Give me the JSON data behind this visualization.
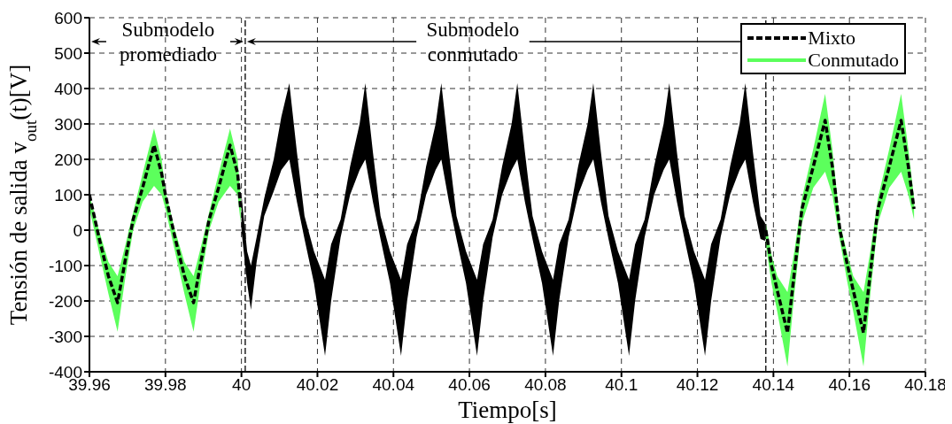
{
  "chart_data": {
    "type": "line",
    "xlabel": "Tiempo[s]",
    "ylabel": "Tensión de salida v$_{out}$(t)[V]",
    "xlim": [
      39.96,
      40.18
    ],
    "xticks": [
      39.96,
      39.98,
      40,
      40.02,
      40.04,
      40.06,
      40.08,
      40.1,
      40.12,
      40.14,
      40.16,
      40.18
    ],
    "ylim": [
      -400,
      600
    ],
    "yticks": [
      -400,
      -300,
      -200,
      -100,
      0,
      100,
      200,
      300,
      400,
      500,
      600
    ],
    "grid": true,
    "legend": "top right",
    "annotations": [
      "Submodelo promediado",
      "Submodelo conmutado"
    ],
    "ref_lines": [
      {
        "axis": "x",
        "value": 40.001,
        "color": "#000000",
        "line_style": "dashed"
      },
      {
        "axis": "x",
        "value": 40.138,
        "color": "#000000",
        "line_style": "dashed"
      }
    ],
    "series": [
      {
        "name": "Mixto",
        "color": "#000000",
        "line_style": "dashed",
        "x": [
          39.96,
          39.9625,
          39.965,
          39.9674,
          39.9695,
          39.9715,
          39.974,
          39.977,
          39.979,
          39.98,
          39.9825,
          39.985,
          39.9874,
          39.9895,
          39.9915,
          39.994,
          39.997,
          39.999,
          39.9998,
          40.0,
          40.0015,
          40.0025,
          40.004,
          40.006,
          40.0085,
          40.0105,
          40.0126,
          40.0146,
          40.0166,
          40.0191,
          40.022,
          40.0236,
          40.0261,
          40.0286,
          40.0311,
          40.0326,
          40.0346,
          40.0366,
          40.0391,
          40.042,
          40.0436,
          40.0461,
          40.0486,
          40.0511,
          40.0526,
          40.0546,
          40.0566,
          40.0591,
          40.062,
          40.0636,
          40.0661,
          40.0686,
          40.0711,
          40.0726,
          40.0746,
          40.0766,
          40.0791,
          40.082,
          40.0836,
          40.0861,
          40.0886,
          40.0911,
          40.0926,
          40.0946,
          40.0966,
          40.0991,
          40.102,
          40.1036,
          40.1061,
          40.1086,
          40.1111,
          40.1126,
          40.1146,
          40.1166,
          40.1191,
          40.122,
          40.1236,
          40.1261,
          40.1286,
          40.1311,
          40.1326,
          40.1346,
          40.1366,
          40.1378,
          40.138,
          40.1395,
          40.141,
          40.1437,
          40.1455,
          40.1475,
          40.1505,
          40.1536,
          40.1555,
          40.1575,
          40.1595,
          40.161,
          40.1637,
          40.1655,
          40.1675,
          40.1705,
          40.1736,
          40.1755,
          40.177
        ],
        "values": [
          100,
          -20,
          -130,
          -205,
          -80,
          30,
          120,
          240,
          160,
          100,
          -20,
          -130,
          -205,
          -80,
          30,
          120,
          240,
          160,
          60,
          null,
          null,
          null,
          null,
          null,
          null,
          null,
          null,
          null,
          null,
          null,
          null,
          null,
          null,
          null,
          null,
          null,
          null,
          null,
          null,
          null,
          null,
          null,
          null,
          null,
          null,
          null,
          null,
          null,
          null,
          null,
          null,
          null,
          null,
          null,
          null,
          null,
          null,
          null,
          null,
          null,
          null,
          null,
          null,
          null,
          null,
          null,
          null,
          null,
          null,
          null,
          null,
          null,
          null,
          null,
          null,
          null,
          null,
          null,
          null,
          null,
          null,
          null,
          null,
          null,
          0,
          -100,
          -170,
          -290,
          -120,
          60,
          180,
          310,
          180,
          0,
          -100,
          -170,
          -290,
          -120,
          60,
          180,
          310,
          180,
          60
        ],
        "lower": [
          null,
          null,
          null,
          null,
          null,
          null,
          null,
          null,
          null,
          null,
          null,
          null,
          null,
          null,
          null,
          null,
          null,
          null,
          null,
          0,
          -150,
          -225,
          -90,
          40,
          110,
          170,
          200,
          80,
          -25,
          -150,
          -355,
          -200,
          -20,
          100,
          170,
          200,
          80,
          -25,
          -150,
          -355,
          -200,
          -20,
          100,
          170,
          200,
          80,
          -25,
          -150,
          -355,
          -200,
          -20,
          100,
          170,
          200,
          80,
          -25,
          -150,
          -355,
          -200,
          -20,
          100,
          170,
          200,
          80,
          -25,
          -150,
          -355,
          -200,
          -20,
          100,
          170,
          200,
          80,
          -25,
          -150,
          -355,
          -200,
          -20,
          100,
          170,
          200,
          80,
          -25,
          -30,
          null,
          null,
          null,
          null,
          null,
          null,
          null,
          null,
          null,
          null,
          null,
          null,
          null,
          null,
          null,
          null,
          null,
          null,
          null
        ],
        "upper": [
          null,
          null,
          null,
          null,
          null,
          null,
          null,
          null,
          null,
          null,
          null,
          null,
          null,
          null,
          null,
          null,
          null,
          null,
          null,
          100,
          -60,
          -100,
          -20,
          90,
          200,
          320,
          415,
          220,
          40,
          -60,
          -140,
          -40,
          30,
          180,
          300,
          415,
          220,
          40,
          -60,
          -140,
          -40,
          30,
          180,
          300,
          415,
          220,
          40,
          -60,
          -140,
          -40,
          30,
          180,
          300,
          415,
          220,
          40,
          -60,
          -140,
          -40,
          30,
          180,
          300,
          415,
          220,
          40,
          -60,
          -140,
          -40,
          30,
          180,
          300,
          415,
          220,
          40,
          -60,
          -140,
          -40,
          30,
          180,
          300,
          415,
          220,
          40,
          20,
          null,
          null,
          null,
          null,
          null,
          null,
          null,
          null,
          null,
          null,
          null,
          null,
          null,
          null,
          null,
          null,
          null,
          null,
          null
        ]
      },
      {
        "name": "Conmutado",
        "color": "#5cff5c",
        "line_style": "solid",
        "x": [
          39.96,
          39.9625,
          39.965,
          39.9674,
          39.9695,
          39.9715,
          39.974,
          39.977,
          39.979,
          39.98,
          39.9825,
          39.985,
          39.9874,
          39.9895,
          39.9915,
          39.994,
          39.997,
          39.999,
          39.9998,
          40.07,
          40.138,
          40.1395,
          40.141,
          40.1437,
          40.1455,
          40.1475,
          40.1505,
          40.1536,
          40.1555,
          40.1575,
          40.1595,
          40.161,
          40.1637,
          40.1655,
          40.1675,
          40.1705,
          40.1736,
          40.1755,
          40.177
        ],
        "values": [
          80,
          -30,
          -135,
          -208,
          -85,
          25,
          120,
          206,
          150,
          85,
          -30,
          -135,
          -208,
          -85,
          25,
          120,
          206,
          150,
          55,
          null,
          -10,
          -110,
          -180,
          -280,
          -120,
          55,
          175,
          275,
          165,
          -5,
          -110,
          -180,
          -280,
          -120,
          55,
          175,
          275,
          165,
          60
        ],
        "lower": [
          60,
          -60,
          -180,
          -287,
          -130,
          0,
          80,
          125,
          100,
          60,
          -60,
          -180,
          -287,
          -130,
          0,
          80,
          125,
          100,
          20,
          null,
          -40,
          -150,
          -230,
          -385,
          -180,
          20,
          120,
          165,
          100,
          -30,
          -150,
          -230,
          -385,
          -180,
          20,
          120,
          165,
          100,
          30
        ],
        "upper": [
          100,
          0,
          -90,
          -130,
          -40,
          50,
          160,
          287,
          200,
          110,
          0,
          -90,
          -130,
          -40,
          50,
          160,
          287,
          200,
          90,
          null,
          20,
          -70,
          -130,
          -175,
          -60,
          90,
          230,
          385,
          230,
          20,
          -70,
          -130,
          -175,
          -60,
          90,
          230,
          385,
          230,
          90
        ]
      }
    ]
  }
}
